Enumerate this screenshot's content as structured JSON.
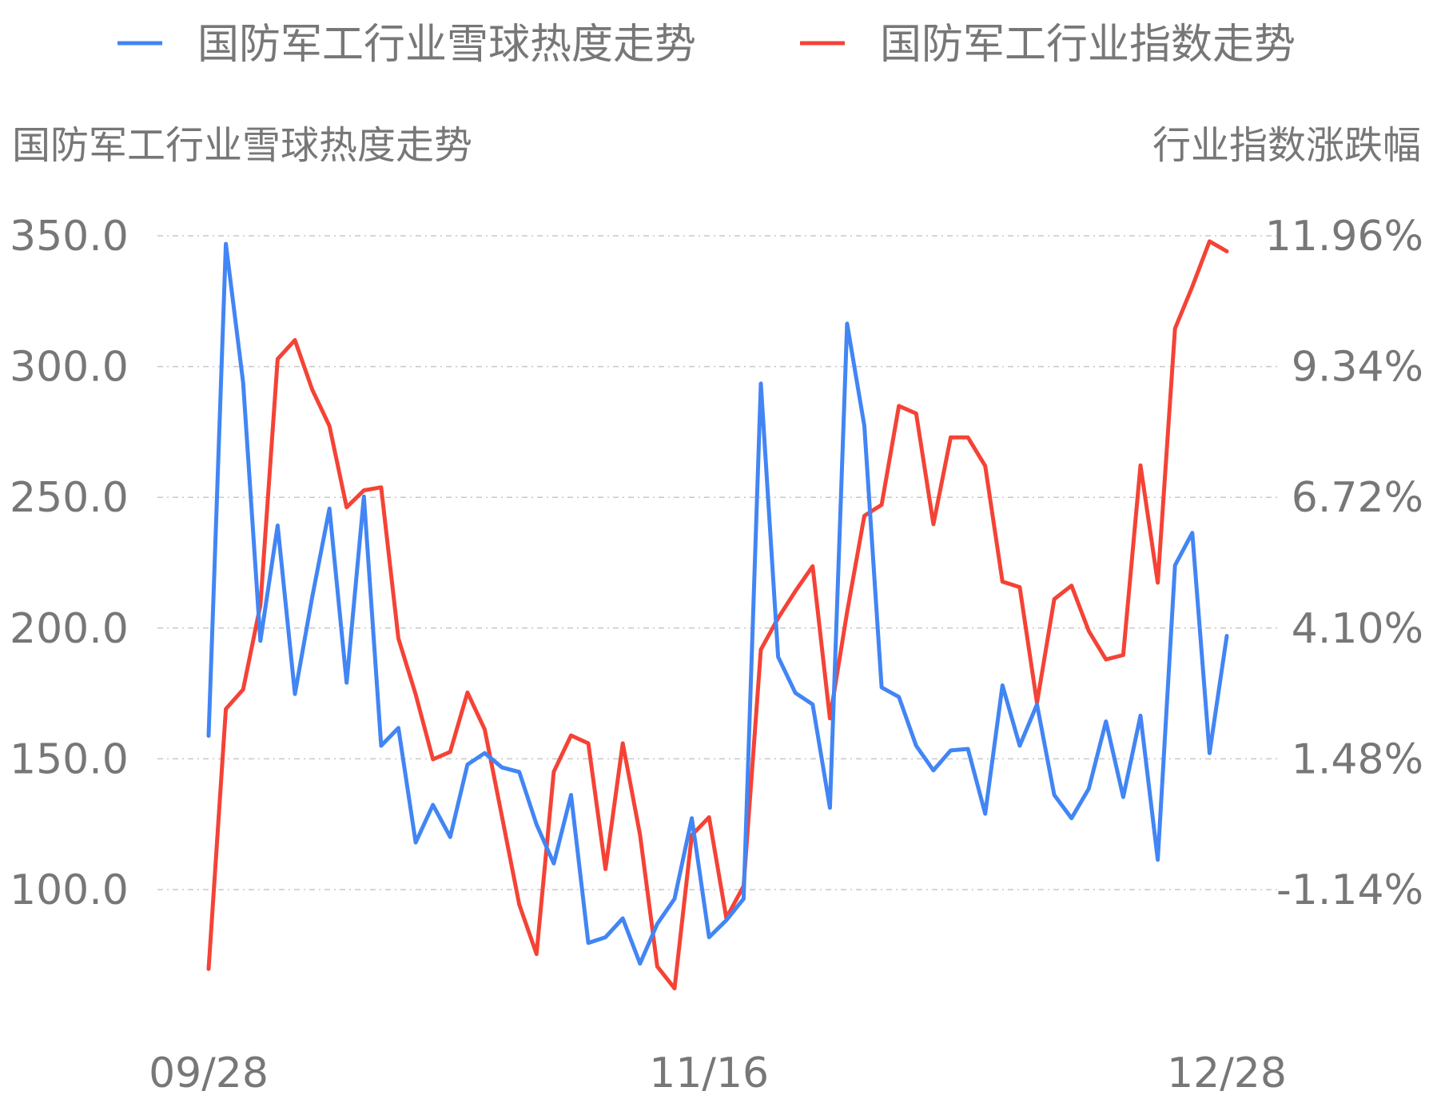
{
  "chart_data": {
    "type": "line",
    "legend": {
      "position": "top",
      "entries": [
        "国防军工行业雪球热度走势",
        "国防军工行业指数走势"
      ]
    },
    "ylabel_left": "国防军工行业雪球热度走势",
    "ylabel_right": "行业指数涨跌幅",
    "x_ticks": [
      "09/28",
      "11/16",
      "12/28"
    ],
    "y_left_ticks": [
      "100.0",
      "150.0",
      "200.0",
      "250.0",
      "300.0",
      "350.0"
    ],
    "y_right_ticks": [
      "-1.14%",
      "1.48%",
      "4.10%",
      "6.72%",
      "9.34%",
      "11.96%"
    ],
    "ylim_left": [
      100,
      350
    ],
    "ylim_right": [
      -1.14,
      11.96
    ],
    "grid": true,
    "series": [
      {
        "name": "国防军工行业雪球热度走势",
        "axis": "left",
        "color": "#4285f4",
        "values": [
          158.8,
          346.9,
          293.9,
          195.1,
          239.2,
          174.8,
          211.8,
          245.7,
          179.1,
          250.3,
          155.0,
          161.8,
          118.0,
          132.4,
          120.1,
          147.8,
          152.2,
          146.7,
          145.0,
          124.9,
          110.0,
          136.2,
          79.6,
          81.8,
          89.0,
          71.7,
          86.9,
          96.5,
          127.3,
          81.8,
          88.3,
          96.5,
          293.5,
          189.0,
          175.2,
          170.8,
          131.3,
          316.4,
          277.3,
          177.3,
          173.7,
          155.0,
          145.6,
          153.2,
          153.8,
          129.0,
          178.1,
          155.0,
          170.8,
          136.2,
          127.3,
          138.6,
          164.3,
          135.4,
          166.5,
          111.4,
          224.0,
          236.4,
          152.2,
          197.0
        ]
      },
      {
        "name": "国防军工行业指数走势",
        "axis": "right",
        "color": "#f44336",
        "values": [
          -2.73,
          2.48,
          2.87,
          4.56,
          9.49,
          9.87,
          8.88,
          8.15,
          6.52,
          6.86,
          6.92,
          3.89,
          2.77,
          1.47,
          1.62,
          2.81,
          2.07,
          0.32,
          -1.44,
          -2.43,
          1.22,
          1.95,
          1.79,
          -0.73,
          1.79,
          -0.04,
          -2.68,
          -3.12,
          -0.05,
          0.31,
          -1.71,
          -1.07,
          3.67,
          4.3,
          4.84,
          5.34,
          2.29,
          4.42,
          6.35,
          6.57,
          8.55,
          8.4,
          6.18,
          7.92,
          7.92,
          7.35,
          5.03,
          4.92,
          2.6,
          4.68,
          4.95,
          4.04,
          3.47,
          3.56,
          7.36,
          5.01,
          10.1,
          10.94,
          11.85,
          11.65
        ]
      }
    ]
  }
}
